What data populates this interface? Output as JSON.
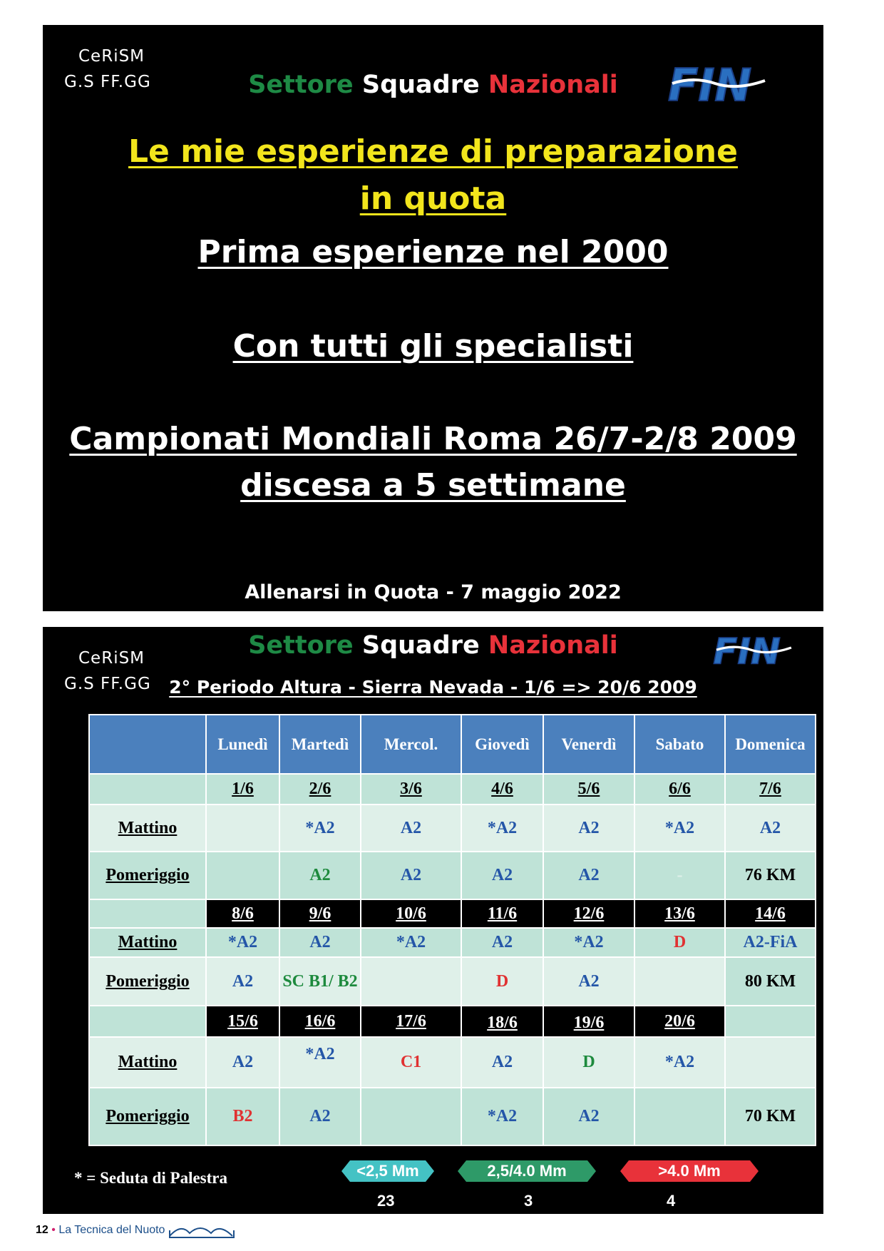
{
  "slide1": {
    "org_line1": "CeRiSM",
    "org_line2": "G.S FF.GG",
    "sector": {
      "word1": "Settore",
      "word2": "Squadre",
      "word3": "Nazionali"
    },
    "logo_text": "FIN",
    "headline_lines": [
      "Le mie esperienze di preparazione",
      "in quota",
      "Prima esperienze  nel 2000",
      "Con tutti gli specialisti",
      "Campionati Mondiali Roma 26/7-2/8 2009",
      "discesa a 5 settimane "
    ],
    "footer": "Allenarsi in Quota - 7 maggio 2022"
  },
  "slide2": {
    "org_line1": "CeRiSM",
    "org_line2": "G.S FF.GG",
    "sector": {
      "word1": "Settore",
      "word2": "Squadre",
      "word3": "Nazionali"
    },
    "logo_text": "FIN",
    "subtitle": "2° Periodo Altura - Sierra Nevada - 1/6 => 20/6 2009",
    "table": {
      "headers": [
        "",
        "Lunedì",
        "Martedì",
        "Mercol.",
        "Giovedì",
        "Venerdì",
        "Sabato",
        "Domenica"
      ],
      "rows": [
        {
          "label": "",
          "cells": [
            [
              "1/6",
              "black"
            ],
            [
              "2/6",
              "black"
            ],
            [
              "3/6",
              "black"
            ],
            [
              "4/6",
              "black"
            ],
            [
              "5/6",
              "black"
            ],
            [
              "6/6",
              "black"
            ],
            [
              "7/6",
              "black"
            ]
          ]
        },
        {
          "label": "Mattino",
          "cells": [
            [
              "",
              ""
            ],
            [
              "*A2",
              "blue"
            ],
            [
              "A2",
              "blue"
            ],
            [
              "*A2",
              "blue"
            ],
            [
              "A2",
              "blue"
            ],
            [
              "*A2",
              "blue"
            ],
            [
              "A2",
              "blue"
            ]
          ]
        },
        {
          "label": "Pomeriggio",
          "cells": [
            [
              "",
              ""
            ],
            [
              "A2",
              "green"
            ],
            [
              "A2",
              "blue"
            ],
            [
              "A2",
              "blue"
            ],
            [
              "A2",
              "blue"
            ],
            [
              "-",
              "faint"
            ],
            [
              "76 KM",
              "black"
            ]
          ]
        },
        {
          "label": "",
          "cells": [
            [
              "8/6",
              "white"
            ],
            [
              "9/6",
              "white"
            ],
            [
              "10/6",
              "white"
            ],
            [
              "11/6",
              "white"
            ],
            [
              "12/6",
              "white"
            ],
            [
              "13/6",
              "white"
            ],
            [
              "14/6",
              "white"
            ]
          ]
        },
        {
          "label": "Mattino",
          "cells": [
            [
              "*A2",
              "blue"
            ],
            [
              "A2",
              "blue"
            ],
            [
              "*A2",
              "blue"
            ],
            [
              "A2",
              "blue"
            ],
            [
              "*A2",
              "blue"
            ],
            [
              "D",
              "red"
            ],
            [
              "A2-FiA",
              "blue"
            ]
          ]
        },
        {
          "label": "Pomeriggio",
          "cells": [
            [
              "A2",
              "blue"
            ],
            [
              "SC B1/ B2",
              "green"
            ],
            [
              "",
              ""
            ],
            [
              "D",
              "red"
            ],
            [
              "A2",
              "blue"
            ],
            [
              "",
              ""
            ],
            [
              "80 KM",
              "black"
            ]
          ]
        },
        {
          "label": "",
          "cells": [
            [
              "15/6",
              "white"
            ],
            [
              "16/6",
              "white"
            ],
            [
              "17/6",
              "white"
            ],
            [
              "18/6",
              "white"
            ],
            [
              "19/6",
              "white"
            ],
            [
              "20/6",
              "white"
            ],
            [
              "",
              ""
            ]
          ]
        },
        {
          "label": "Mattino",
          "cells": [
            [
              "A2",
              "blue"
            ],
            [
              "*A2",
              "blue"
            ],
            [
              "C1",
              "red"
            ],
            [
              "A2",
              "blue"
            ],
            [
              "D",
              "green"
            ],
            [
              "*A2",
              "blue"
            ],
            [
              "",
              ""
            ]
          ]
        },
        {
          "label": "Pomeriggio",
          "cells": [
            [
              "B2",
              "red"
            ],
            [
              "A2",
              "blue"
            ],
            [
              "",
              ""
            ],
            [
              "*A2",
              "blue"
            ],
            [
              "A2",
              "blue"
            ],
            [
              "",
              ""
            ],
            [
              "70 KM",
              "black"
            ]
          ]
        }
      ]
    },
    "legend_note": "* = Seduta di Palestra",
    "legend": [
      {
        "label": "<2,5 Mm",
        "count": "23",
        "color": "#44c2c4"
      },
      {
        "label": "2,5/4.0 Mm",
        "count": "3",
        "color": "#2e9a68"
      },
      {
        "label": ">4.0 Mm",
        "count": "4",
        "color": "#e8323a"
      }
    ]
  },
  "page_footer": {
    "page_number": "12",
    "publication": "La Tecnica del Nuoto"
  }
}
